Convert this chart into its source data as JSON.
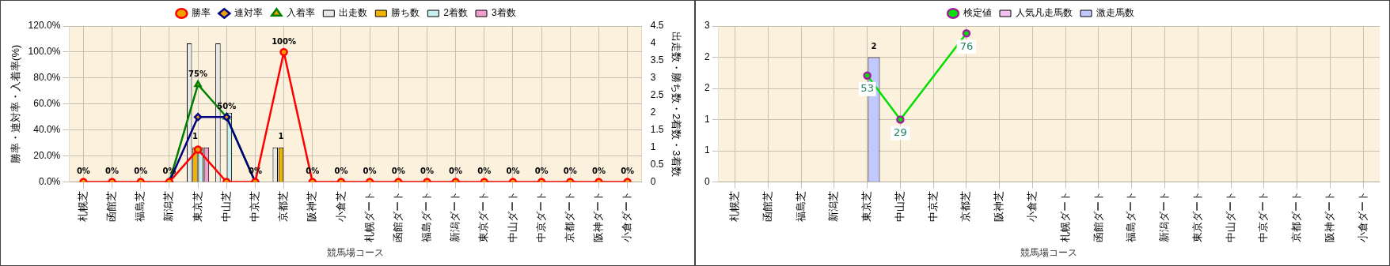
{
  "chart_data": [
    {
      "type": "bar",
      "xlabel": "競馬場コース",
      "ylabel": "勝率・連対率・入着率(%)",
      "y2label": "出走数・勝ち数・2着数・3着数",
      "categories": [
        "札幌芝",
        "函館芝",
        "福島芝",
        "新潟芝",
        "東京芝",
        "中山芝",
        "中京芝",
        "京都芝",
        "阪神芝",
        "小倉芝",
        "札幌ダート",
        "函館ダート",
        "福島ダート",
        "新潟ダート",
        "東京ダート",
        "中山ダート",
        "中京ダート",
        "京都ダート",
        "阪神ダート",
        "小倉ダート"
      ],
      "ylim": [
        0,
        120
      ],
      "yticks": [
        {
          "value": 0,
          "label": "0.0%"
        },
        {
          "value": 20,
          "label": "20.0%"
        },
        {
          "value": 40,
          "label": "40.0%"
        },
        {
          "value": 60,
          "label": "60.0%"
        },
        {
          "value": 80,
          "label": "80.0%"
        },
        {
          "value": 100,
          "label": "100.0%"
        },
        {
          "value": 120,
          "label": "120.0%"
        }
      ],
      "y2lim": [
        0,
        4.5
      ],
      "y2ticks": [
        0,
        0.5,
        1,
        1.5,
        2,
        2.5,
        3,
        3.5,
        4,
        4.5
      ],
      "grid": true,
      "legend": "top",
      "series": [
        {
          "name": "出走数",
          "axis": "y2",
          "color": "#e8e8e8",
          "values": [
            0,
            0,
            0,
            0,
            4,
            4,
            0,
            1,
            0,
            0,
            0,
            0,
            0,
            0,
            0,
            0,
            0,
            0,
            0,
            0
          ]
        },
        {
          "name": "勝ち数",
          "axis": "y2",
          "color": "#f0b400",
          "values": [
            0,
            0,
            0,
            0,
            1,
            0,
            0,
            1,
            0,
            0,
            0,
            0,
            0,
            0,
            0,
            0,
            0,
            0,
            0,
            0
          ],
          "value_labels": [
            null,
            null,
            null,
            null,
            "1",
            null,
            null,
            "1",
            null,
            null,
            null,
            null,
            null,
            null,
            null,
            null,
            null,
            null,
            null,
            null
          ]
        },
        {
          "name": "2着数",
          "axis": "y2",
          "color": "#c8f0f0",
          "values": [
            0,
            0,
            0,
            0,
            1,
            2,
            0,
            0,
            0,
            0,
            0,
            0,
            0,
            0,
            0,
            0,
            0,
            0,
            0,
            0
          ]
        },
        {
          "name": "3着数",
          "axis": "y2",
          "color": "#f0a0d0",
          "values": [
            0,
            0,
            0,
            0,
            1,
            0,
            0,
            0,
            0,
            0,
            0,
            0,
            0,
            0,
            0,
            0,
            0,
            0,
            0,
            0
          ]
        },
        {
          "name": "入着率",
          "type": "line",
          "axis": "y",
          "color": "#008000",
          "marker": "triangle",
          "values": [
            null,
            null,
            null,
            0,
            75,
            50,
            0,
            null,
            null,
            null,
            null,
            null,
            null,
            null,
            null,
            null,
            null,
            null,
            null,
            null
          ],
          "value_labels": [
            null,
            null,
            null,
            null,
            "75%",
            "50%",
            null,
            null,
            null,
            null,
            null,
            null,
            null,
            null,
            null,
            null,
            null,
            null,
            null,
            null
          ]
        },
        {
          "name": "連対率",
          "type": "line",
          "axis": "y",
          "color": "#000080",
          "marker": "diamond",
          "values": [
            null,
            null,
            null,
            0,
            50,
            50,
            0,
            null,
            null,
            null,
            null,
            null,
            null,
            null,
            null,
            null,
            null,
            null,
            null,
            null
          ]
        },
        {
          "name": "勝率",
          "type": "line",
          "axis": "y",
          "color": "#ff0000",
          "marker": "circle",
          "values": [
            0,
            0,
            0,
            0,
            25,
            0,
            0,
            100,
            0,
            0,
            0,
            0,
            0,
            0,
            0,
            0,
            0,
            0,
            0,
            0
          ],
          "value_labels": [
            "0%",
            "0%",
            "0%",
            "0%",
            null,
            null,
            "0%",
            "100%",
            "0%",
            "0%",
            "0%",
            "0%",
            "0%",
            "0%",
            "0%",
            "0%",
            "0%",
            "0%",
            "0%",
            "0%"
          ]
        }
      ]
    },
    {
      "type": "bar",
      "xlabel": "競馬場コース",
      "categories": [
        "札幌芝",
        "函館芝",
        "福島芝",
        "新潟芝",
        "東京芝",
        "中山芝",
        "中京芝",
        "京都芝",
        "阪神芝",
        "小倉芝",
        "札幌ダート",
        "函館ダート",
        "福島ダート",
        "新潟ダート",
        "東京ダート",
        "中山ダート",
        "中京ダート",
        "京都ダート",
        "阪神ダート",
        "小倉ダート"
      ],
      "ylim": [
        0,
        2.5
      ],
      "yticks": [
        {
          "value": 0,
          "label": "0"
        },
        {
          "value": 0.5,
          "label": "1"
        },
        {
          "value": 1,
          "label": "1"
        },
        {
          "value": 1.5,
          "label": "2"
        },
        {
          "value": 2,
          "label": "2"
        },
        {
          "value": 2.5,
          "label": "3"
        }
      ],
      "y2lim": [
        -5,
        80
      ],
      "grid": true,
      "legend": "top",
      "series": [
        {
          "name": "人気凡走馬数",
          "color": "#f0c0f0",
          "values": [
            0,
            0,
            0,
            0,
            0,
            0,
            0,
            0,
            0,
            0,
            0,
            0,
            0,
            0,
            0,
            0,
            0,
            0,
            0,
            0
          ]
        },
        {
          "name": "激走馬数",
          "color": "#c0c8ff",
          "values": [
            0,
            0,
            0,
            0,
            2,
            0,
            0,
            0,
            0,
            0,
            0,
            0,
            0,
            0,
            0,
            0,
            0,
            0,
            0,
            0
          ],
          "value_labels": [
            null,
            null,
            null,
            null,
            "2",
            null,
            null,
            null,
            null,
            null,
            null,
            null,
            null,
            null,
            null,
            null,
            null,
            null,
            null,
            null
          ]
        },
        {
          "name": "検定値",
          "type": "line",
          "axis": "y2",
          "color": "#00e000",
          "marker": "circle",
          "values": [
            null,
            null,
            null,
            null,
            53,
            29,
            null,
            76,
            null,
            null,
            null,
            null,
            null,
            null,
            null,
            null,
            null,
            null,
            null,
            null
          ],
          "value_labels": [
            null,
            null,
            null,
            null,
            "53",
            "29",
            null,
            "76",
            null,
            null,
            null,
            null,
            null,
            null,
            null,
            null,
            null,
            null,
            null,
            null
          ]
        }
      ]
    }
  ]
}
